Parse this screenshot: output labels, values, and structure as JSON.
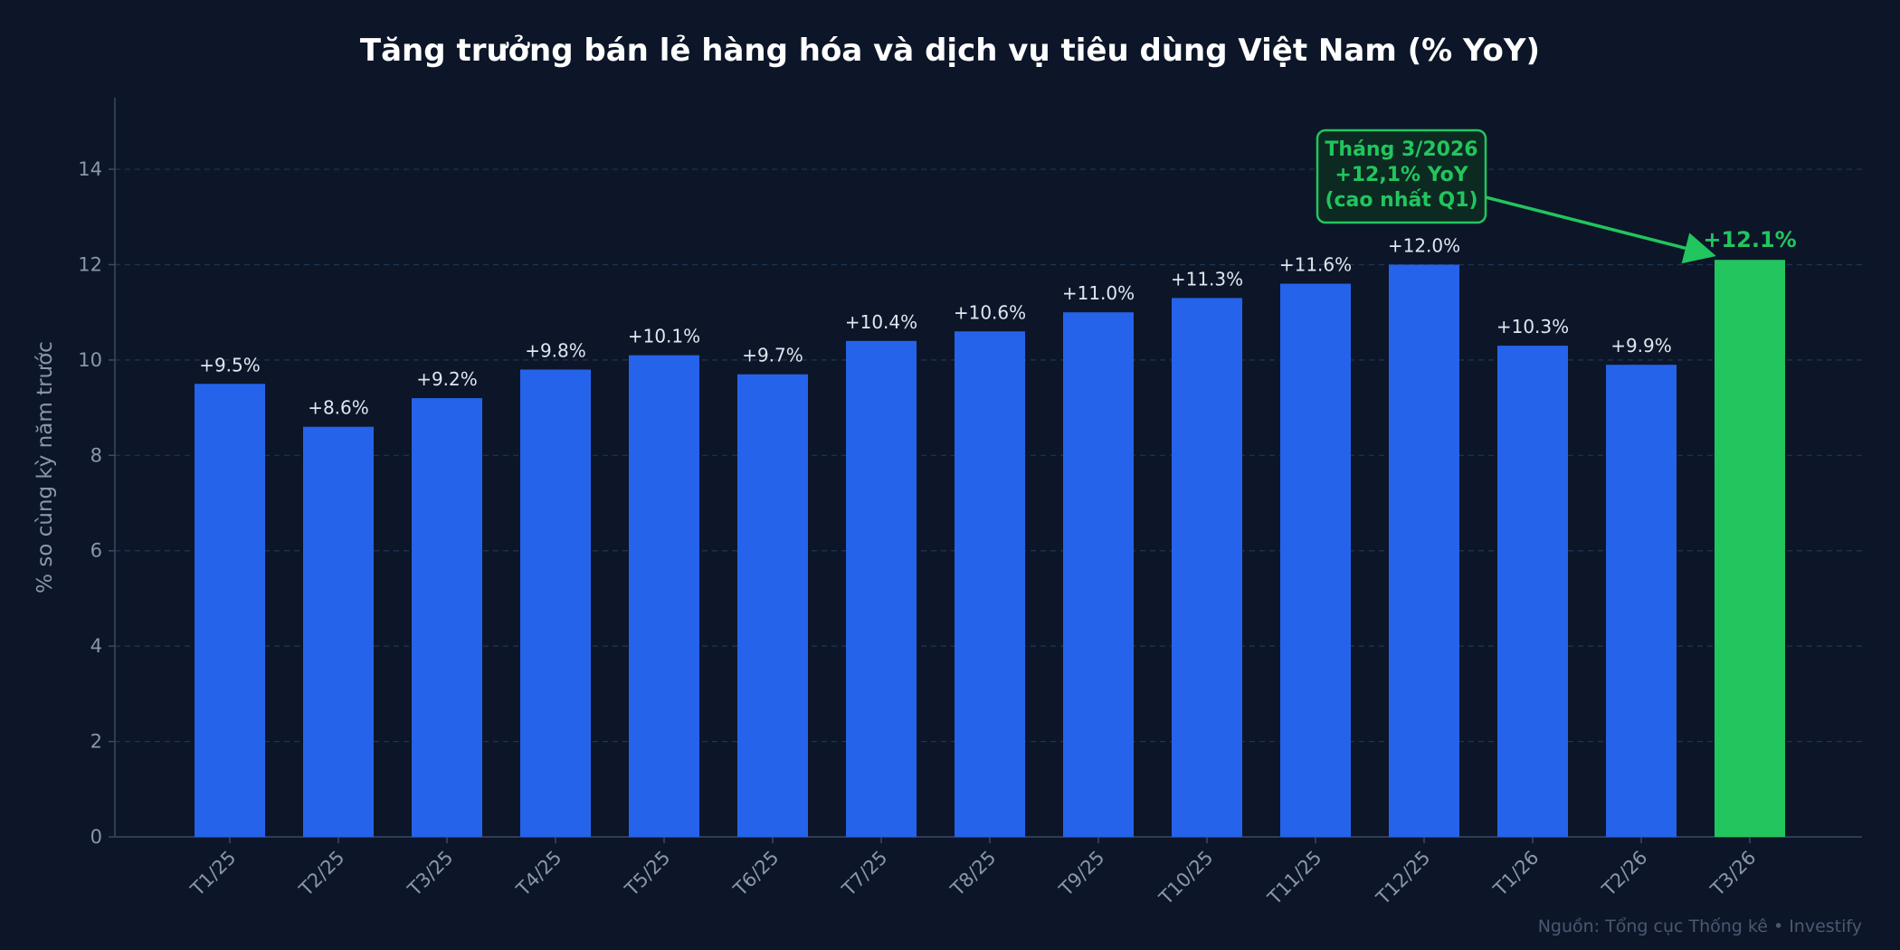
{
  "chart_data": {
    "type": "bar",
    "title": "Tăng trưởng bán lẻ hàng hóa và dịch vụ tiêu dùng Việt Nam (% YoY)",
    "xlabel": "",
    "ylabel": "% so cùng kỳ năm trước",
    "categories": [
      "T1/25",
      "T2/25",
      "T3/25",
      "T4/25",
      "T5/25",
      "T6/25",
      "T7/25",
      "T8/25",
      "T9/25",
      "T10/25",
      "T11/25",
      "T12/25",
      "T1/26",
      "T2/26",
      "T3/26"
    ],
    "values": [
      9.5,
      8.6,
      9.2,
      9.8,
      10.1,
      9.7,
      10.4,
      10.6,
      11.0,
      11.3,
      11.6,
      12.0,
      10.3,
      9.9,
      12.1
    ],
    "data_labels": [
      "+9.5%",
      "+8.6%",
      "+9.2%",
      "+9.8%",
      "+10.1%",
      "+9.7%",
      "+10.4%",
      "+10.6%",
      "+11.0%",
      "+11.3%",
      "+11.6%",
      "+12.0%",
      "+10.3%",
      "+9.9%",
      "+12.1%"
    ],
    "ylim": [
      0,
      15.5
    ],
    "yticks": [
      0,
      2,
      4,
      6,
      8,
      10,
      12,
      14
    ],
    "grid": true,
    "colors": {
      "bar": "#2563eb",
      "highlight": "#22c55e"
    },
    "highlight_index": 14,
    "annotation": {
      "target_category": "T3/26",
      "lines": [
        "Tháng 3/2026",
        "+12,1% YoY",
        "(cao nhất Q1)"
      ]
    },
    "source": "Nguồn: Tổng cục Thống kê  •  Investify"
  }
}
